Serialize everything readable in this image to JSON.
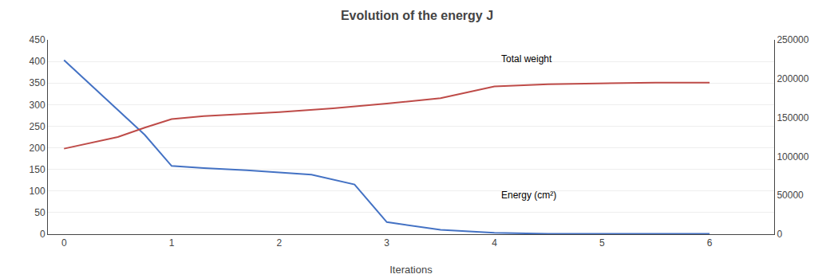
{
  "chart_data": {
    "type": "line",
    "title": "Evolution of the energy J",
    "xlabel": "Iterations",
    "series": [
      {
        "color": "#4472C4",
        "axis": "y",
        "x": [
          0,
          0.75,
          1.0,
          1.3,
          1.7,
          2.0,
          2.3,
          2.7,
          3.0,
          3.5,
          4.0,
          4.5,
          5.0,
          5.5,
          6.0
        ],
        "values": [
          403,
          230,
          158,
          153,
          148,
          143,
          138,
          115,
          28,
          10,
          3,
          1,
          1,
          1,
          1
        ]
      },
      {
        "color": "#BE4B48",
        "axis": "y2",
        "x": [
          0,
          0.5,
          0.75,
          1.0,
          1.3,
          1.7,
          2.0,
          2.5,
          3.0,
          3.5,
          4.0,
          4.5,
          5.0,
          5.5,
          6.0
        ],
        "values": [
          110000,
          125000,
          137000,
          148000,
          152000,
          155000,
          157000,
          162000,
          168000,
          175000,
          190000,
          193000,
          194000,
          195000,
          195000
        ]
      }
    ],
    "xlim": [
      -0.15,
      6.6
    ],
    "xticks": [
      0,
      1,
      2,
      3,
      4,
      5,
      6
    ],
    "ylim": [
      0,
      450
    ],
    "yticks": [
      0,
      50,
      100,
      150,
      200,
      250,
      300,
      350,
      400,
      450
    ],
    "y2lim": [
      0,
      250000
    ],
    "y2ticks": [
      0,
      50000,
      100000,
      150000,
      200000,
      250000
    ],
    "grid": true,
    "annotations": [
      {
        "text": "Total weight",
        "x": 4.05,
        "y": 225000,
        "axis": "y2"
      },
      {
        "text": "Energy (cm²)",
        "x": 4.05,
        "y": 50000,
        "axis": "y2"
      }
    ]
  }
}
